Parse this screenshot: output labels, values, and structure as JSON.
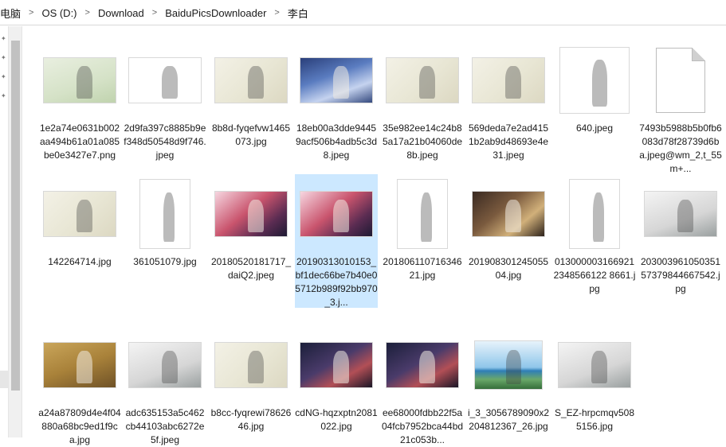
{
  "breadcrumb": [
    "电脑",
    "OS (D:)",
    "Download",
    "BaiduPicsDownloader",
    "李白"
  ],
  "breadcrumb_separator": ">",
  "files": [
    {
      "name": "1e2a74e0631b002aa494b61a01a085be0e3427e7.png",
      "art": "art-green",
      "icon": "ink-figure-thumbnail"
    },
    {
      "name": "2d9fa397c8885b9ef348d50548d9f746.jpeg",
      "art": "art-paper",
      "icon": "ink-figure-thumbnail"
    },
    {
      "name": "8b8d-fyqefvw1465073.jpg",
      "art": "art-ink",
      "icon": "ink-figure-thumbnail"
    },
    {
      "name": "18eb00a3dde94459acf506b4adb5c3d8.jpeg",
      "art": "art-blue",
      "icon": "game-art-thumbnail"
    },
    {
      "name": "35e982ee14c24b85a17a21b04060de8b.jpeg",
      "art": "art-ink",
      "icon": "ink-figure-thumbnail"
    },
    {
      "name": "569deda7e2ad4151b2ab9d48693e4e31.jpeg",
      "art": "art-ink",
      "icon": "ink-landscape-thumbnail"
    },
    {
      "name": "640.jpeg",
      "art": "art-paper",
      "icon": "cartoon-thumbnail"
    },
    {
      "name": "7493b5988b5b0fb6083d78f28739d6ba.jpeg@wm_2,t_55m+...",
      "art": "doc",
      "icon": "generic-file-icon"
    },
    {
      "name": "142264714.jpg",
      "art": "art-ink",
      "icon": "ink-figure-thumbnail"
    },
    {
      "name": "361051079.jpg",
      "art": "art-paper",
      "icon": "ink-figure-thumbnail"
    },
    {
      "name": "20180520181717_daiQ2.jpeg",
      "art": "art-pink",
      "icon": "game-art-thumbnail"
    },
    {
      "name": "20190313010153_bf1dec66be7b40e05712b989f92bb970_3.j...",
      "art": "art-pink",
      "icon": "game-art-thumbnail",
      "selected": true
    },
    {
      "name": "20180611071634621.jpg",
      "art": "art-paper",
      "icon": "ink-figure-thumbnail"
    },
    {
      "name": "20190830124505504.jpg",
      "art": "art-dark",
      "icon": "photo-thumbnail"
    },
    {
      "name": "0130000031669212348566122 8661.jpg",
      "art": "art-paper",
      "icon": "portrait-thumbnail"
    },
    {
      "name": "20300396105035157379844667542.jpg",
      "art": "art-grey",
      "icon": "ink-landscape-thumbnail"
    },
    {
      "name": "a24a87809d4e4f04880a68bc9ed1f9ca.jpg",
      "art": "art-gold",
      "icon": "ink-figure-thumbnail"
    },
    {
      "name": "adc635153a5c462cb44103abc6272e5f.jpeg",
      "art": "art-grey",
      "icon": "ink-landscape-thumbnail"
    },
    {
      "name": "b8cc-fyqrewi7862646.jpg",
      "art": "art-ink",
      "icon": "ink-landscape-thumbnail"
    },
    {
      "name": "cdNG-hqzxptn2081022.jpg",
      "art": "art-night",
      "icon": "game-art-thumbnail"
    },
    {
      "name": "ee68000fdbb22f5a04fcb7952bca44bd21c053b...",
      "art": "art-night",
      "icon": "game-art-thumbnail"
    },
    {
      "name": "i_3_3056789090x2204812367_26.jpg",
      "art": "art-sea",
      "icon": "landscape-thumbnail"
    },
    {
      "name": "S_EZ-hrpcmqv5085156.jpg",
      "art": "art-grey",
      "icon": "ink-landscape-thumbnail"
    }
  ]
}
